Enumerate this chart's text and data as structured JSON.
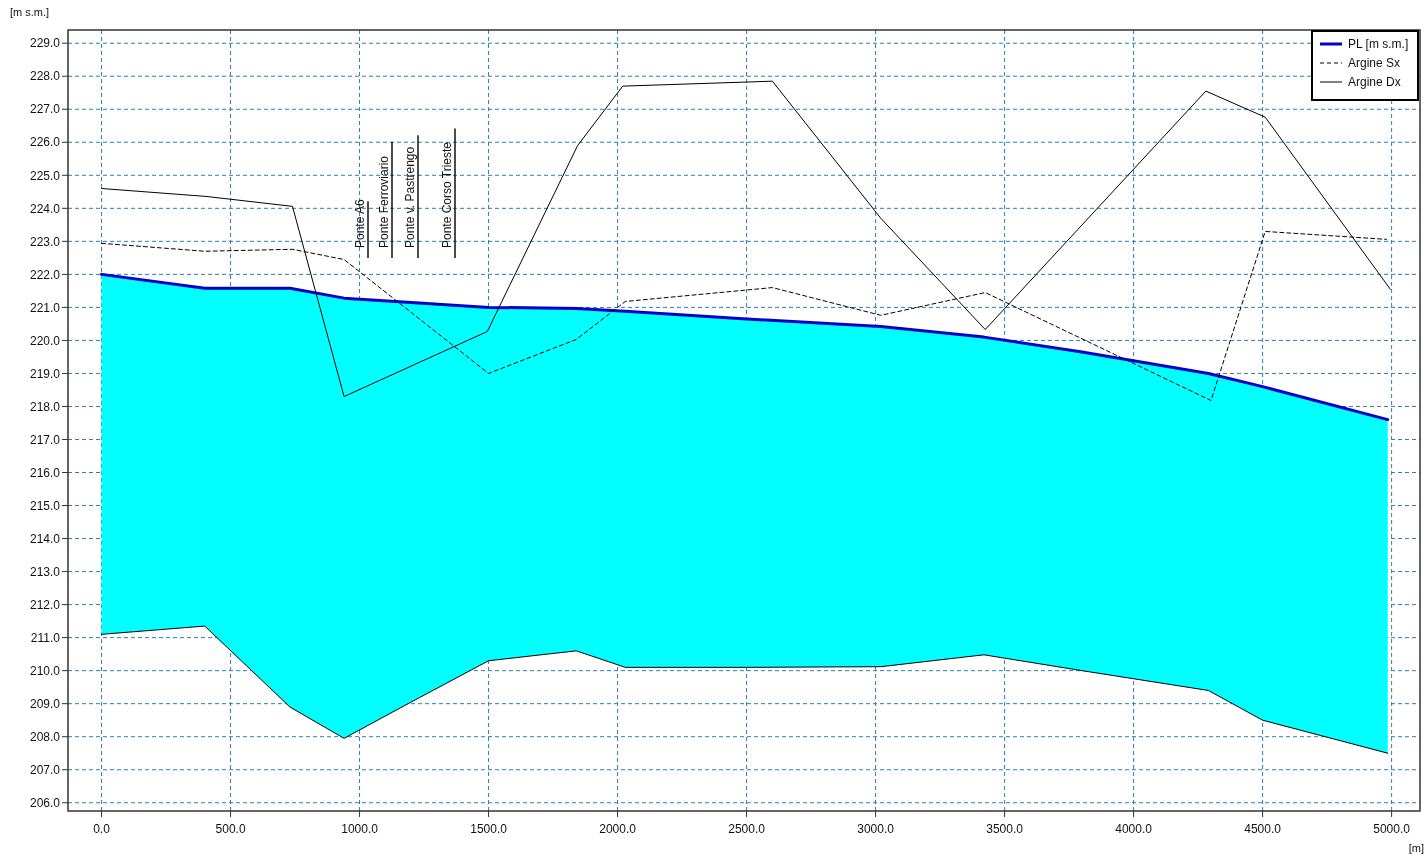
{
  "chart_data": {
    "type": "line",
    "ylabel": "[m s.m.]",
    "xlabel": "[m]",
    "xlim": [
      -130,
      5110
    ],
    "ylim": [
      205.75,
      229.4
    ],
    "xticks": [
      {
        "value": 0,
        "label": "0.0"
      },
      {
        "value": 500,
        "label": "500.0"
      },
      {
        "value": 1000,
        "label": "1000.0"
      },
      {
        "value": 1500,
        "label": "1500.0"
      },
      {
        "value": 2000,
        "label": "2000.0"
      },
      {
        "value": 2500,
        "label": "2500.0"
      },
      {
        "value": 3000,
        "label": "3000.0"
      },
      {
        "value": 3500,
        "label": "3500.0"
      },
      {
        "value": 4000,
        "label": "4000.0"
      },
      {
        "value": 4500,
        "label": "4500.0"
      },
      {
        "value": 5000,
        "label": "5000.0"
      }
    ],
    "yticks": [
      {
        "value": 206,
        "label": "206.0"
      },
      {
        "value": 207,
        "label": "207.0"
      },
      {
        "value": 208,
        "label": "208.0"
      },
      {
        "value": 209,
        "label": "209.0"
      },
      {
        "value": 210,
        "label": "210.0"
      },
      {
        "value": 211,
        "label": "211.0"
      },
      {
        "value": 212,
        "label": "212.0"
      },
      {
        "value": 213,
        "label": "213.0"
      },
      {
        "value": 214,
        "label": "214.0"
      },
      {
        "value": 215,
        "label": "215.0"
      },
      {
        "value": 216,
        "label": "216.0"
      },
      {
        "value": 217,
        "label": "217.0"
      },
      {
        "value": 218,
        "label": "218.0"
      },
      {
        "value": 219,
        "label": "219.0"
      },
      {
        "value": 220,
        "label": "220.0"
      },
      {
        "value": 221,
        "label": "221.0"
      },
      {
        "value": 222,
        "label": "222.0"
      },
      {
        "value": 223,
        "label": "223.0"
      },
      {
        "value": 224,
        "label": "224.0"
      },
      {
        "value": 225,
        "label": "225.0"
      },
      {
        "value": 226,
        "label": "226.0"
      },
      {
        "value": 227,
        "label": "227.0"
      },
      {
        "value": 228,
        "label": "228.0"
      },
      {
        "value": 229,
        "label": "229.0"
      }
    ],
    "grid": true,
    "legend": "top right",
    "series": [
      {
        "type": "line",
        "name": "PL [m s.m.]",
        "color": "#0000cc",
        "line_style": "solid",
        "x": [
          0,
          400,
          730,
          940,
          1200,
          1500,
          1840,
          2030,
          2500,
          3020,
          3420,
          3800,
          4290,
          4500,
          4985
        ],
        "values": [
          222.0,
          221.58,
          221.58,
          221.28,
          221.15,
          221.0,
          220.97,
          220.88,
          220.65,
          220.42,
          220.1,
          219.65,
          219.0,
          218.6,
          217.6
        ],
        "lower": [
          211.1,
          211.35,
          208.9,
          207.95,
          209.05,
          210.3,
          210.6,
          210.1,
          210.1,
          210.12,
          210.48,
          210.0,
          209.4,
          208.5,
          207.5
        ],
        "upper": [
          222.0,
          221.58,
          221.58,
          221.28,
          221.15,
          221.0,
          220.97,
          220.88,
          220.65,
          220.42,
          220.1,
          219.65,
          219.0,
          218.6,
          217.6
        ]
      },
      {
        "type": "line",
        "name": "Argine Sx",
        "color": "#000000",
        "line_style": "dashed",
        "x": [
          0,
          400,
          740,
          940,
          1500,
          1840,
          2030,
          2600,
          3020,
          3425,
          4300,
          4510,
          4980
        ],
        "values": [
          222.94,
          222.7,
          222.76,
          222.45,
          219.0,
          220.03,
          221.18,
          221.6,
          220.76,
          221.45,
          218.18,
          223.3,
          223.06
        ]
      },
      {
        "type": "line",
        "name": "Argine Dx",
        "color": "#000000",
        "line_style": "solid",
        "x": [
          0,
          405,
          740,
          940,
          1495,
          1845,
          2020,
          2600,
          3020,
          3425,
          4280,
          4510,
          4995
        ],
        "values": [
          224.6,
          224.36,
          224.06,
          218.3,
          220.27,
          225.9,
          227.7,
          227.85,
          223.7,
          220.33,
          227.55,
          226.76,
          221.55
        ]
      },
      {
        "type": "line",
        "color": "#000000",
        "line_style": "solid",
        "x": [
          0,
          400,
          730,
          940,
          1200,
          1500,
          1840,
          2030,
          2500,
          3020,
          3420,
          3800,
          4290,
          4500,
          4985
        ],
        "values": [
          211.1,
          211.35,
          208.9,
          207.95,
          209.05,
          210.3,
          210.6,
          210.1,
          210.1,
          210.12,
          210.48,
          210.0,
          209.4,
          208.5,
          207.5
        ]
      }
    ],
    "annotations": [
      "Ponte A6",
      "Ponte Ferroviario",
      "Ponte v. Pastrengo",
      "Ponte Corso Trieste"
    ]
  }
}
